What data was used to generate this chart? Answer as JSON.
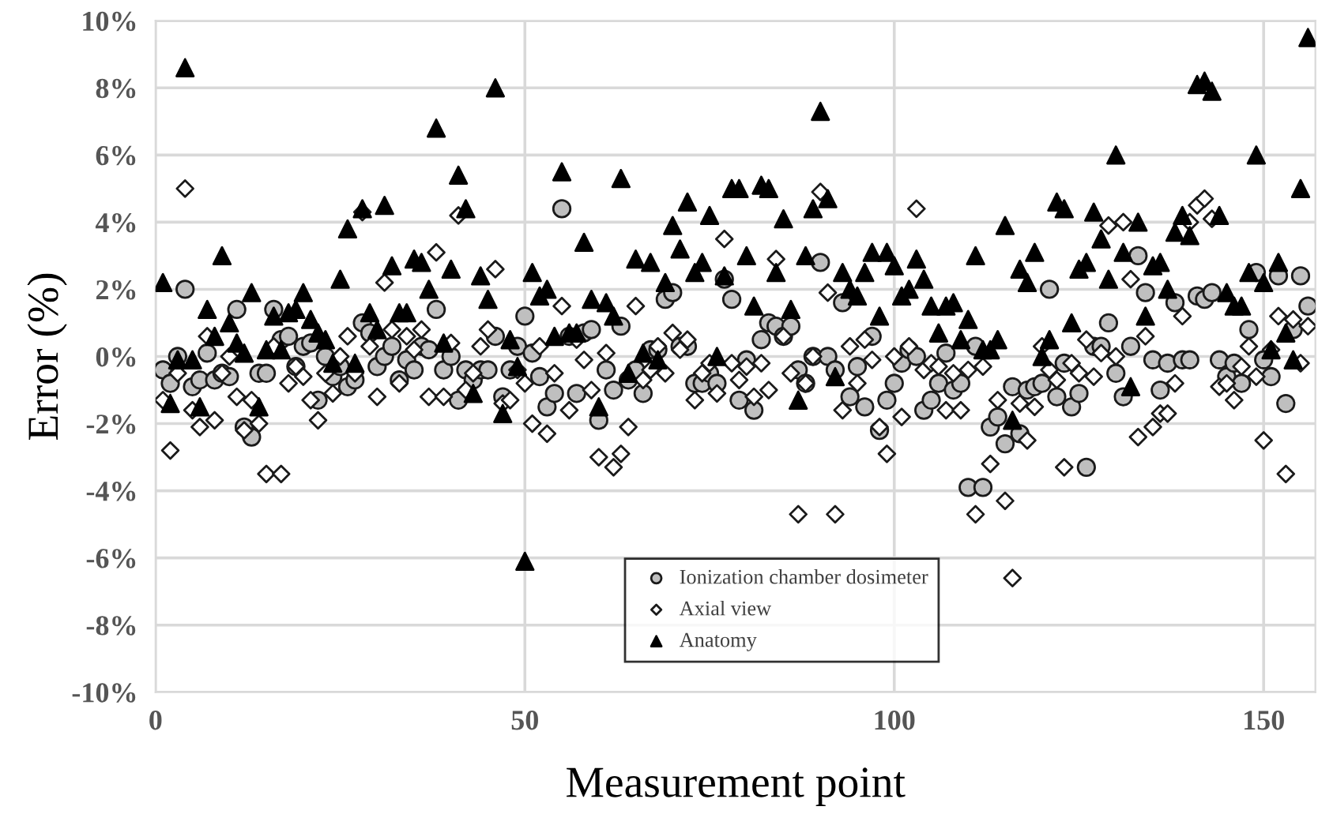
{
  "chart_data": {
    "type": "scatter",
    "xlabel": "Measurement point",
    "ylabel": "Error (%)",
    "x": [
      1,
      2,
      3,
      4,
      5,
      6,
      7,
      8,
      9,
      10,
      11,
      12,
      13,
      14,
      15,
      16,
      17,
      18,
      19,
      20,
      21,
      22,
      23,
      24,
      25,
      26,
      27,
      28,
      29,
      30,
      31,
      32,
      33,
      34,
      35,
      36,
      37,
      38,
      39,
      40,
      41,
      42,
      43,
      44,
      45,
      46,
      47,
      48,
      49,
      50,
      51,
      52,
      53,
      54,
      55,
      56,
      57,
      58,
      59,
      60,
      61,
      62,
      63,
      64,
      65,
      66,
      67,
      68,
      69,
      70,
      71,
      72,
      73,
      74,
      75,
      76,
      77,
      78,
      79,
      80,
      81,
      82,
      83,
      84,
      85,
      86,
      87,
      88,
      89,
      90,
      91,
      92,
      93,
      94,
      95,
      96,
      97,
      98,
      99,
      100,
      101,
      102,
      103,
      104,
      105,
      106,
      107,
      108,
      109,
      110,
      111,
      112,
      113,
      114,
      115,
      116,
      117,
      118,
      119,
      120,
      121,
      122,
      123,
      124,
      125,
      126,
      127,
      128,
      129,
      130,
      131,
      132,
      133,
      134,
      135,
      136,
      137,
      138,
      139,
      140,
      141,
      142,
      143,
      144,
      145,
      146,
      147,
      148,
      149,
      150,
      151,
      152,
      153,
      154,
      155,
      156
    ],
    "series": [
      {
        "name": "Ionization chamber dosimeter",
        "color": "#bfbfbf",
        "marker": "circle",
        "values": [
          -0.4,
          -0.8,
          0.0,
          2.0,
          -0.9,
          -0.7,
          0.1,
          -0.7,
          -0.5,
          -0.6,
          1.4,
          -2.1,
          -2.4,
          -0.5,
          -0.5,
          1.4,
          0.5,
          0.6,
          -0.3,
          0.3,
          0.4,
          -1.3,
          0.0,
          -0.6,
          -0.3,
          -0.9,
          -0.7,
          1.0,
          0.7,
          -0.3,
          0.0,
          0.3,
          -0.7,
          -0.1,
          -0.4,
          0.3,
          0.2,
          1.4,
          -0.4,
          0.0,
          -1.3,
          -0.4,
          -0.7,
          -0.4,
          -0.4,
          0.6,
          -1.2,
          -0.4,
          0.3,
          1.2,
          0.1,
          -0.6,
          -1.5,
          -1.1,
          4.4,
          0.6,
          -1.1,
          0.7,
          0.8,
          -1.9,
          -0.4,
          -1.0,
          0.9,
          -0.7,
          -0.4,
          -1.1,
          0.2,
          0.2,
          1.7,
          1.9,
          0.3,
          0.3,
          -0.8,
          -0.8,
          -0.5,
          -0.8,
          2.3,
          1.7,
          -1.3,
          -0.1,
          -1.6,
          0.5,
          1.0,
          0.9,
          0.6,
          0.9,
          -0.4,
          -0.8,
          0.0,
          2.8,
          0.0,
          -0.4,
          1.6,
          -1.2,
          -0.3,
          -1.5,
          0.6,
          -2.2,
          -1.3,
          -0.8,
          -0.2,
          0.2,
          0.0,
          -1.6,
          -1.3,
          -0.8,
          0.1,
          -1.0,
          -0.8,
          -3.9,
          0.3,
          -3.9,
          -2.1,
          -1.8,
          -2.6,
          -0.9,
          -2.3,
          -1.0,
          -0.9,
          -0.8,
          2.0,
          -1.2,
          -0.2,
          -1.5,
          -1.1,
          -3.3,
          0.3,
          0.3,
          1.0,
          -0.5,
          -1.2,
          0.3,
          3.0,
          1.9,
          -0.1,
          -1.0,
          -0.2,
          1.6,
          -0.1,
          -0.1,
          1.8,
          1.7,
          1.9,
          -0.1,
          -0.6,
          -0.2,
          -0.8,
          0.8,
          2.5,
          -0.1,
          -0.6,
          2.4,
          -1.4,
          0.8,
          2.4,
          1.5
        ]
      },
      {
        "name": "Axial view",
        "color": "#ffffff",
        "marker": "diamond",
        "values": [
          -1.3,
          -2.8,
          -0.5,
          5.0,
          -1.6,
          -2.1,
          0.6,
          -1.9,
          -0.5,
          0.0,
          -1.2,
          -2.2,
          -1.3,
          -2.0,
          -3.5,
          0.3,
          -3.5,
          -0.8,
          -0.3,
          -0.6,
          -1.3,
          -1.9,
          -0.5,
          -1.1,
          0.0,
          0.6,
          -0.5,
          4.3,
          0.3,
          -1.2,
          2.2,
          0.8,
          -0.8,
          0.6,
          0.2,
          0.8,
          -1.2,
          3.1,
          -1.2,
          0.4,
          4.2,
          -1.0,
          -0.5,
          0.3,
          0.8,
          2.6,
          -1.4,
          -1.3,
          -0.4,
          -0.8,
          -2.0,
          0.3,
          -2.3,
          -0.5,
          1.5,
          -1.6,
          0.5,
          -0.1,
          -1.0,
          -3.0,
          0.1,
          -3.3,
          -2.9,
          -2.1,
          1.5,
          -0.7,
          -0.4,
          0.3,
          -0.5,
          0.7,
          0.2,
          0.5,
          -1.3,
          -0.5,
          -0.2,
          -1.1,
          3.5,
          -0.2,
          -0.7,
          -0.3,
          -1.2,
          -0.2,
          -1.0,
          2.9,
          0.6,
          -0.5,
          -4.7,
          -0.8,
          0.0,
          4.9,
          1.9,
          -4.7,
          -1.6,
          0.3,
          -0.8,
          0.5,
          -0.1,
          -2.1,
          -2.9,
          0.0,
          -1.8,
          0.3,
          4.4,
          -0.4,
          -0.2,
          -0.3,
          -1.6,
          -0.5,
          -1.6,
          -0.4,
          -4.7,
          -0.3,
          -3.2,
          -1.3,
          -4.3,
          -6.6,
          -1.4,
          -2.5,
          -1.5,
          0.3,
          -0.4,
          -0.7,
          -3.3,
          -0.2,
          -0.5,
          0.5,
          -0.6,
          0.1,
          3.9,
          0.0,
          4.0,
          2.3,
          -2.4,
          0.6,
          -2.1,
          -1.7,
          -1.7,
          -0.8,
          1.2,
          4.0,
          4.5,
          4.7,
          4.1,
          -0.9,
          -0.8,
          -1.3,
          -0.3,
          0.3,
          -0.6,
          -2.5,
          0.2,
          1.2,
          -3.5,
          1.1,
          -0.2,
          0.9
        ]
      },
      {
        "name": "Anatomy",
        "color": "#000000",
        "marker": "triangle",
        "values": [
          2.2,
          -1.4,
          -0.1,
          8.6,
          -0.1,
          -1.5,
          1.4,
          0.6,
          3.0,
          1.0,
          0.4,
          0.1,
          1.9,
          -1.5,
          0.2,
          1.2,
          0.2,
          1.3,
          1.4,
          1.9,
          1.1,
          0.7,
          0.5,
          -0.2,
          2.3,
          3.8,
          -0.2,
          4.4,
          1.3,
          0.8,
          4.5,
          2.7,
          1.3,
          1.3,
          2.9,
          2.8,
          2.0,
          6.8,
          0.4,
          2.6,
          5.4,
          4.4,
          -1.1,
          2.4,
          1.7,
          8.0,
          -1.7,
          0.5,
          -0.3,
          -6.1,
          2.5,
          1.8,
          2.0,
          0.6,
          5.5,
          0.7,
          0.7,
          3.4,
          1.7,
          -1.5,
          1.6,
          1.2,
          5.3,
          -0.5,
          2.9,
          0.1,
          2.8,
          -0.1,
          2.2,
          3.9,
          3.2,
          4.6,
          2.5,
          2.8,
          4.2,
          0.0,
          2.4,
          5.0,
          5.0,
          3.0,
          1.5,
          5.1,
          5.0,
          2.5,
          4.1,
          1.4,
          -1.3,
          3.0,
          4.4,
          7.3,
          4.7,
          -0.6,
          2.5,
          2.0,
          1.8,
          2.5,
          3.1,
          1.2,
          3.1,
          2.7,
          1.8,
          2.0,
          2.9,
          2.3,
          1.5,
          0.7,
          1.5,
          1.6,
          0.5,
          1.1,
          3.0,
          0.2,
          0.2,
          0.5,
          3.9,
          -1.9,
          2.6,
          2.2,
          3.1,
          0.0,
          0.5,
          4.6,
          4.4,
          1.0,
          2.6,
          2.8,
          4.3,
          3.5,
          2.3,
          6.0,
          3.1,
          -0.9,
          4.0,
          1.2,
          2.7,
          2.8,
          2.0,
          3.7,
          4.2,
          3.6,
          8.1,
          8.2,
          7.9,
          4.2,
          1.9,
          1.5,
          1.5,
          2.5,
          6.0,
          2.2,
          0.2,
          2.8,
          0.7,
          -0.1,
          5.0,
          9.5
        ]
      }
    ],
    "xlim": [
      0,
      157
    ],
    "xticks": [
      0,
      50,
      100,
      150
    ],
    "ylim": [
      -10,
      10
    ],
    "yticks": [
      {
        "value": -10,
        "label": "-10%"
      },
      {
        "value": -8,
        "label": "-8%"
      },
      {
        "value": -6,
        "label": "-6%"
      },
      {
        "value": -4,
        "label": "-4%"
      },
      {
        "value": -2,
        "label": "-2%"
      },
      {
        "value": 0,
        "label": "0%"
      },
      {
        "value": 2,
        "label": "2%"
      },
      {
        "value": 4,
        "label": "4%"
      },
      {
        "value": 6,
        "label": "6%"
      },
      {
        "value": 8,
        "label": "8%"
      },
      {
        "value": 10,
        "label": "10%"
      }
    ],
    "grid": true,
    "legend": "bottom"
  }
}
